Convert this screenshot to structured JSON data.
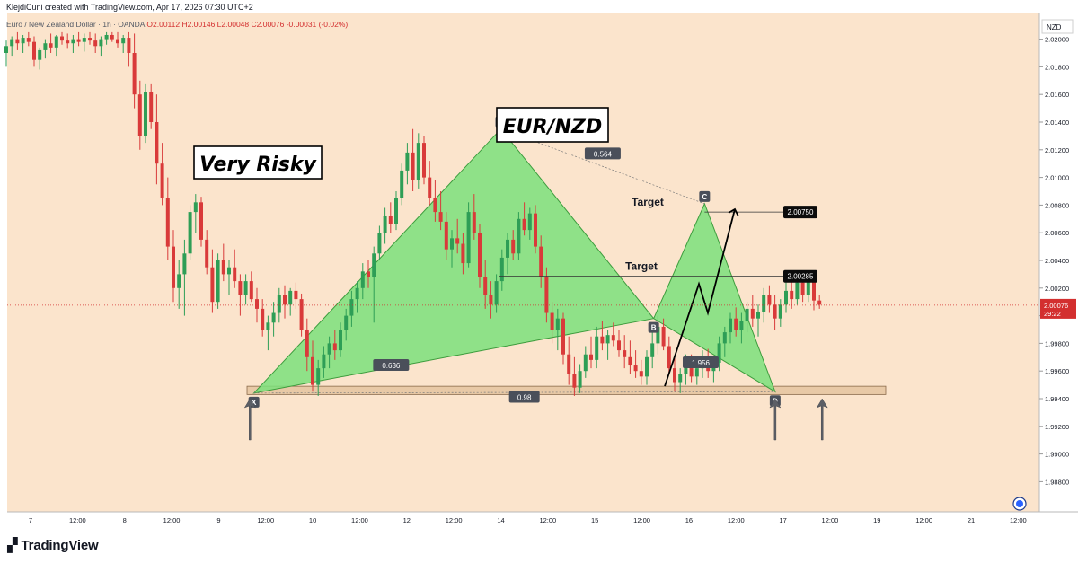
{
  "header": {
    "credit": "KlejdiCuni created with TradingView.com, Apr 17, 2026 07:30 UTC+2",
    "symbol": "Euro / New Zealand Dollar · 1h · OANDA",
    "ohlc": "O2.00112 H2.00146 L2.00048 C2.00076 -0.00031 (-0.02%)"
  },
  "footer": {
    "brand": "TradingView",
    "logo_icon": "tradingview-logo-icon"
  },
  "colors": {
    "background": "#fbe4cc",
    "up": "#2e9e56",
    "down": "#d93a3a",
    "pattern_fill": "#7be07b",
    "zone_fill": "#e8c9a6",
    "last_price": "#d32f2f"
  },
  "chart_data": {
    "type": "candlestick",
    "title": "EUR/NZD",
    "annotations": {
      "risk_label": "Very Risky",
      "pair_label": "EUR/NZD",
      "pattern_points": [
        {
          "label": "X",
          "time": "Apr 9 09:00",
          "price": 1.9944
        },
        {
          "label": "A",
          "time": "Apr 12 00:00",
          "price": 2.0135
        },
        {
          "label": "B",
          "time": "Apr 13 15:00",
          "price": 1.9998
        },
        {
          "label": "C",
          "time": "Apr 14 04:00",
          "price": 2.0081
        },
        {
          "label": "D",
          "time": "Apr 14 22:00",
          "price": 1.9945
        }
      ],
      "ratios": [
        {
          "label": "0.564",
          "time": "Apr 13 02:00",
          "price": 2.0117
        },
        {
          "label": "0.636",
          "time": "Apr 10 20:00",
          "price": 1.9964
        },
        {
          "label": "1.956",
          "time": "Apr 14 03:00",
          "price": 1.9966
        },
        {
          "label": "0.98",
          "time": "Apr 12 06:00",
          "price": 1.9941
        }
      ],
      "targets": [
        {
          "label": "Target",
          "price": 2.0075,
          "badge": "2.00750"
        },
        {
          "label": "Target",
          "price": 2.00285,
          "badge": "2.00285"
        }
      ],
      "support_zone": {
        "from": 1.9943,
        "to": 1.9949
      },
      "arrows_up": [
        "Apr 9 08:00",
        "Apr 14 22:00",
        "Apr 15 10:00"
      ]
    },
    "price_axis": {
      "currency": "NZD",
      "ticks": [
        "2.02000",
        "2.01800",
        "2.01600",
        "2.01400",
        "2.01200",
        "2.01000",
        "2.00800",
        "2.00600",
        "2.00400",
        "2.00200",
        "2.00000",
        "1.99800",
        "1.99600",
        "1.99400",
        "1.99200",
        "1.99000",
        "1.98800"
      ],
      "last_price": "2.00076",
      "countdown": "29:22",
      "range": [
        1.9868,
        2.0205
      ]
    },
    "time_axis": {
      "ticks": [
        "7",
        "12:00",
        "8",
        "12:00",
        "9",
        "12:00",
        "10",
        "12:00",
        "12",
        "12:00",
        "14",
        "12:00",
        "15",
        "12:00",
        "16",
        "12:00",
        "17",
        "12:00",
        "19",
        "12:00",
        "21",
        "12:00"
      ]
    },
    "candles": [
      {
        "o": 2.019,
        "h": 2.0199,
        "l": 2.018,
        "c": 2.0195
      },
      {
        "o": 2.0195,
        "h": 2.0202,
        "l": 2.0188,
        "c": 2.02
      },
      {
        "o": 2.02,
        "h": 2.0205,
        "l": 2.0192,
        "c": 2.0197
      },
      {
        "o": 2.0197,
        "h": 2.0203,
        "l": 2.019,
        "c": 2.0201
      },
      {
        "o": 2.0201,
        "h": 2.0205,
        "l": 2.0195,
        "c": 2.0198
      },
      {
        "o": 2.0198,
        "h": 2.0202,
        "l": 2.018,
        "c": 2.0185
      },
      {
        "o": 2.0185,
        "h": 2.0194,
        "l": 2.0178,
        "c": 2.0192
      },
      {
        "o": 2.0192,
        "h": 2.02,
        "l": 2.0186,
        "c": 2.0197
      },
      {
        "o": 2.0197,
        "h": 2.0204,
        "l": 2.019,
        "c": 2.0194
      },
      {
        "o": 2.0194,
        "h": 2.0203,
        "l": 2.0188,
        "c": 2.0202
      },
      {
        "o": 2.0202,
        "h": 2.0205,
        "l": 2.0196,
        "c": 2.0199
      },
      {
        "o": 2.0199,
        "h": 2.0204,
        "l": 2.0193,
        "c": 2.0197
      },
      {
        "o": 2.0197,
        "h": 2.0203,
        "l": 2.019,
        "c": 2.02
      },
      {
        "o": 2.02,
        "h": 2.0205,
        "l": 2.0195,
        "c": 2.0198
      },
      {
        "o": 2.0198,
        "h": 2.0204,
        "l": 2.0191,
        "c": 2.0201
      },
      {
        "o": 2.0201,
        "h": 2.0205,
        "l": 2.0196,
        "c": 2.0199
      },
      {
        "o": 2.0199,
        "h": 2.0204,
        "l": 2.019,
        "c": 2.0195
      },
      {
        "o": 2.0195,
        "h": 2.0202,
        "l": 2.0188,
        "c": 2.02
      },
      {
        "o": 2.02,
        "h": 2.0205,
        "l": 2.0196,
        "c": 2.0203
      },
      {
        "o": 2.0203,
        "h": 2.0205,
        "l": 2.0198,
        "c": 2.02
      },
      {
        "o": 2.02,
        "h": 2.0205,
        "l": 2.0194,
        "c": 2.0197
      },
      {
        "o": 2.0197,
        "h": 2.0203,
        "l": 2.019,
        "c": 2.0201
      },
      {
        "o": 2.0201,
        "h": 2.0205,
        "l": 2.018,
        "c": 2.019
      },
      {
        "o": 2.019,
        "h": 2.0204,
        "l": 2.015,
        "c": 2.016
      },
      {
        "o": 2.016,
        "h": 2.017,
        "l": 2.012,
        "c": 2.013
      },
      {
        "o": 2.013,
        "h": 2.0168,
        "l": 2.0125,
        "c": 2.0162
      },
      {
        "o": 2.0162,
        "h": 2.0168,
        "l": 2.0135,
        "c": 2.014
      },
      {
        "o": 2.014,
        "h": 2.016,
        "l": 2.0095,
        "c": 2.011
      },
      {
        "o": 2.011,
        "h": 2.0125,
        "l": 2.008,
        "c": 2.0085
      },
      {
        "o": 2.0085,
        "h": 2.01,
        "l": 2.004,
        "c": 2.005
      },
      {
        "o": 2.005,
        "h": 2.0062,
        "l": 2.001,
        "c": 2.002
      },
      {
        "o": 2.002,
        "h": 2.004,
        "l": 2.0005,
        "c": 2.003
      },
      {
        "o": 2.003,
        "h": 2.0055,
        "l": 2.0,
        "c": 2.0045
      },
      {
        "o": 2.0045,
        "h": 2.008,
        "l": 2.004,
        "c": 2.0075
      },
      {
        "o": 2.0075,
        "h": 2.0088,
        "l": 2.006,
        "c": 2.0082
      },
      {
        "o": 2.0082,
        "h": 2.0086,
        "l": 2.005,
        "c": 2.0055
      },
      {
        "o": 2.0055,
        "h": 2.0062,
        "l": 2.003,
        "c": 2.0035
      },
      {
        "o": 2.0035,
        "h": 2.0048,
        "l": 2.0002,
        "c": 2.001
      },
      {
        "o": 2.001,
        "h": 2.0045,
        "l": 2.0005,
        "c": 2.004
      },
      {
        "o": 2.004,
        "h": 2.0052,
        "l": 2.0025,
        "c": 2.003
      },
      {
        "o": 2.003,
        "h": 2.004,
        "l": 2.0015,
        "c": 2.0035
      },
      {
        "o": 2.0035,
        "h": 2.0048,
        "l": 2.002,
        "c": 2.0025
      },
      {
        "o": 2.0025,
        "h": 2.003,
        "l": 2.0,
        "c": 2.0015
      },
      {
        "o": 2.0015,
        "h": 2.003,
        "l": 2.0008,
        "c": 2.0025
      },
      {
        "o": 2.0025,
        "h": 2.0032,
        "l": 2.001,
        "c": 2.0012
      },
      {
        "o": 2.0012,
        "h": 2.002,
        "l": 1.9995,
        "c": 2.0005
      },
      {
        "o": 2.0005,
        "h": 2.0012,
        "l": 1.9985,
        "c": 1.999
      },
      {
        "o": 1.999,
        "h": 2.0,
        "l": 1.9975,
        "c": 1.9995
      },
      {
        "o": 1.9995,
        "h": 2.001,
        "l": 1.9985,
        "c": 2.0002
      },
      {
        "o": 2.0002,
        "h": 2.002,
        "l": 1.9995,
        "c": 2.0015
      },
      {
        "o": 2.0015,
        "h": 2.0022,
        "l": 1.9998,
        "c": 2.0008
      },
      {
        "o": 2.0008,
        "h": 2.002,
        "l": 2.0,
        "c": 2.0018
      },
      {
        "o": 2.0018,
        "h": 2.0024,
        "l": 2.0005,
        "c": 2.0012
      },
      {
        "o": 2.0012,
        "h": 2.0016,
        "l": 1.9985,
        "c": 1.999
      },
      {
        "o": 1.999,
        "h": 1.9998,
        "l": 1.996,
        "c": 1.997
      },
      {
        "o": 1.997,
        "h": 1.9982,
        "l": 1.9945,
        "c": 1.995
      },
      {
        "o": 1.995,
        "h": 1.9968,
        "l": 1.9942,
        "c": 1.9962
      },
      {
        "o": 1.9962,
        "h": 1.9978,
        "l": 1.9955,
        "c": 1.9972
      },
      {
        "o": 1.9972,
        "h": 1.9985,
        "l": 1.9962,
        "c": 1.998
      },
      {
        "o": 1.998,
        "h": 1.999,
        "l": 1.9968,
        "c": 1.9975
      },
      {
        "o": 1.9975,
        "h": 1.9995,
        "l": 1.997,
        "c": 1.999
      },
      {
        "o": 1.999,
        "h": 2.0005,
        "l": 1.9982,
        "c": 2.0
      },
      {
        "o": 2.0,
        "h": 2.0018,
        "l": 1.9992,
        "c": 2.0012
      },
      {
        "o": 2.0012,
        "h": 2.0025,
        "l": 2.0002,
        "c": 2.002
      },
      {
        "o": 2.002,
        "h": 2.0038,
        "l": 2.0012,
        "c": 2.0032
      },
      {
        "o": 2.0032,
        "h": 2.004,
        "l": 2.002,
        "c": 2.0028
      },
      {
        "o": 2.0028,
        "h": 2.005,
        "l": 1.9995,
        "c": 2.0045
      },
      {
        "o": 2.0045,
        "h": 2.0065,
        "l": 2.004,
        "c": 2.006
      },
      {
        "o": 2.006,
        "h": 2.0078,
        "l": 2.0052,
        "c": 2.0072
      },
      {
        "o": 2.0072,
        "h": 2.0082,
        "l": 2.006,
        "c": 2.0066
      },
      {
        "o": 2.0066,
        "h": 2.009,
        "l": 2.0062,
        "c": 2.0085
      },
      {
        "o": 2.0085,
        "h": 2.011,
        "l": 2.008,
        "c": 2.0105
      },
      {
        "o": 2.0105,
        "h": 2.0125,
        "l": 2.0095,
        "c": 2.0118
      },
      {
        "o": 2.0118,
        "h": 2.0135,
        "l": 2.009,
        "c": 2.0098
      },
      {
        "o": 2.0098,
        "h": 2.0132,
        "l": 2.0092,
        "c": 2.0125
      },
      {
        "o": 2.0125,
        "h": 2.013,
        "l": 2.0095,
        "c": 2.01
      },
      {
        "o": 2.01,
        "h": 2.0112,
        "l": 2.008,
        "c": 2.0085
      },
      {
        "o": 2.0085,
        "h": 2.0098,
        "l": 2.0068,
        "c": 2.0075
      },
      {
        "o": 2.0075,
        "h": 2.009,
        "l": 2.0062,
        "c": 2.0068
      },
      {
        "o": 2.0068,
        "h": 2.0075,
        "l": 2.004,
        "c": 2.0048
      },
      {
        "o": 2.0048,
        "h": 2.0062,
        "l": 2.0035,
        "c": 2.0056
      },
      {
        "o": 2.0056,
        "h": 2.007,
        "l": 2.0045,
        "c": 2.0052
      },
      {
        "o": 2.0052,
        "h": 2.006,
        "l": 2.003,
        "c": 2.0038
      },
      {
        "o": 2.0038,
        "h": 2.0082,
        "l": 2.0035,
        "c": 2.0075
      },
      {
        "o": 2.0075,
        "h": 2.0088,
        "l": 2.0055,
        "c": 2.006
      },
      {
        "o": 2.006,
        "h": 2.0066,
        "l": 2.002,
        "c": 2.0028
      },
      {
        "o": 2.0028,
        "h": 2.004,
        "l": 2.0005,
        "c": 2.0015
      },
      {
        "o": 2.0015,
        "h": 2.0025,
        "l": 1.9998,
        "c": 2.0008
      },
      {
        "o": 2.0008,
        "h": 2.003,
        "l": 2.0002,
        "c": 2.0025
      },
      {
        "o": 2.0025,
        "h": 2.0048,
        "l": 2.0018,
        "c": 2.0042
      },
      {
        "o": 2.0042,
        "h": 2.006,
        "l": 2.003,
        "c": 2.0055
      },
      {
        "o": 2.0055,
        "h": 2.0062,
        "l": 2.004,
        "c": 2.0045
      },
      {
        "o": 2.0045,
        "h": 2.0075,
        "l": 2.004,
        "c": 2.007
      },
      {
        "o": 2.007,
        "h": 2.0082,
        "l": 2.0058,
        "c": 2.0062
      },
      {
        "o": 2.0062,
        "h": 2.0078,
        "l": 2.0055,
        "c": 2.0074
      },
      {
        "o": 2.0074,
        "h": 2.008,
        "l": 2.0045,
        "c": 2.005
      },
      {
        "o": 2.005,
        "h": 2.0058,
        "l": 2.002,
        "c": 2.0028
      },
      {
        "o": 2.0028,
        "h": 2.0035,
        "l": 1.9995,
        "c": 2.0002
      },
      {
        "o": 2.0002,
        "h": 2.001,
        "l": 1.998,
        "c": 1.999
      },
      {
        "o": 1.999,
        "h": 2.0005,
        "l": 1.9975,
        "c": 1.9998
      },
      {
        "o": 1.9998,
        "h": 2.0002,
        "l": 1.9965,
        "c": 1.9972
      },
      {
        "o": 1.9972,
        "h": 1.9985,
        "l": 1.995,
        "c": 1.9958
      },
      {
        "o": 1.9958,
        "h": 1.997,
        "l": 1.9942,
        "c": 1.9948
      },
      {
        "o": 1.9948,
        "h": 1.9965,
        "l": 1.9944,
        "c": 1.996
      },
      {
        "o": 1.996,
        "h": 1.9978,
        "l": 1.9955,
        "c": 1.9972
      },
      {
        "o": 1.9972,
        "h": 1.9985,
        "l": 1.9962,
        "c": 1.9968
      },
      {
        "o": 1.9968,
        "h": 1.9992,
        "l": 1.9962,
        "c": 1.9985
      },
      {
        "o": 1.9985,
        "h": 1.9996,
        "l": 1.9975,
        "c": 1.998
      },
      {
        "o": 1.998,
        "h": 1.999,
        "l": 1.9968,
        "c": 1.9986
      },
      {
        "o": 1.9986,
        "h": 1.9995,
        "l": 1.9978,
        "c": 1.9982
      },
      {
        "o": 1.9982,
        "h": 1.999,
        "l": 1.997,
        "c": 1.9975
      },
      {
        "o": 1.9975,
        "h": 1.9986,
        "l": 1.9962,
        "c": 1.997
      },
      {
        "o": 1.997,
        "h": 1.9982,
        "l": 1.9958,
        "c": 1.9964
      },
      {
        "o": 1.9964,
        "h": 1.9975,
        "l": 1.9955,
        "c": 1.996
      },
      {
        "o": 1.996,
        "h": 1.9968,
        "l": 1.995,
        "c": 1.9956
      },
      {
        "o": 1.9956,
        "h": 1.9975,
        "l": 1.995,
        "c": 1.997
      },
      {
        "o": 1.997,
        "h": 1.9988,
        "l": 1.9962,
        "c": 1.998
      },
      {
        "o": 1.998,
        "h": 2.0,
        "l": 1.9972,
        "c": 1.9992
      },
      {
        "o": 1.9992,
        "h": 1.9998,
        "l": 1.9975,
        "c": 1.9978
      },
      {
        "o": 1.9978,
        "h": 1.9985,
        "l": 1.9958,
        "c": 1.9962
      },
      {
        "o": 1.9962,
        "h": 1.997,
        "l": 1.9945,
        "c": 1.9952
      },
      {
        "o": 1.9952,
        "h": 1.9962,
        "l": 1.9944,
        "c": 1.9958
      },
      {
        "o": 1.9958,
        "h": 1.9972,
        "l": 1.995,
        "c": 1.9966
      },
      {
        "o": 1.9966,
        "h": 1.9972,
        "l": 1.9952,
        "c": 1.9956
      },
      {
        "o": 1.9956,
        "h": 1.9968,
        "l": 1.995,
        "c": 1.9962
      },
      {
        "o": 1.9962,
        "h": 1.9975,
        "l": 1.9955,
        "c": 1.997
      },
      {
        "o": 1.997,
        "h": 1.9976,
        "l": 1.9955,
        "c": 1.996
      },
      {
        "o": 1.996,
        "h": 1.997,
        "l": 1.9952,
        "c": 1.9966
      },
      {
        "o": 1.9966,
        "h": 1.9985,
        "l": 1.996,
        "c": 1.998
      },
      {
        "o": 1.998,
        "h": 1.9992,
        "l": 1.997,
        "c": 1.9988
      },
      {
        "o": 1.9988,
        "h": 2.0002,
        "l": 1.998,
        "c": 1.9998
      },
      {
        "o": 1.9998,
        "h": 2.0006,
        "l": 1.9985,
        "c": 1.999
      },
      {
        "o": 1.999,
        "h": 2.0002,
        "l": 1.998,
        "c": 1.9996
      },
      {
        "o": 1.9996,
        "h": 2.001,
        "l": 1.9988,
        "c": 2.0005
      },
      {
        "o": 2.0005,
        "h": 2.0015,
        "l": 1.9992,
        "c": 1.9998
      },
      {
        "o": 1.9998,
        "h": 2.0008,
        "l": 1.9985,
        "c": 2.0003
      },
      {
        "o": 2.0003,
        "h": 2.002,
        "l": 1.9995,
        "c": 2.0015
      },
      {
        "o": 2.0015,
        "h": 2.0022,
        "l": 2.0002,
        "c": 2.0008
      },
      {
        "o": 2.0008,
        "h": 2.0015,
        "l": 1.999,
        "c": 1.9998
      },
      {
        "o": 1.9998,
        "h": 2.0012,
        "l": 1.9992,
        "c": 2.0008
      },
      {
        "o": 2.0008,
        "h": 2.0024,
        "l": 2.0002,
        "c": 2.0018
      },
      {
        "o": 2.0018,
        "h": 2.0026,
        "l": 2.0005,
        "c": 2.0012
      },
      {
        "o": 2.0012,
        "h": 2.0028,
        "l": 2.0008,
        "c": 2.0024
      },
      {
        "o": 2.0024,
        "h": 2.0029,
        "l": 2.001,
        "c": 2.0015
      },
      {
        "o": 2.0015,
        "h": 2.003,
        "l": 2.001,
        "c": 2.0025
      },
      {
        "o": 2.0025,
        "h": 2.0029,
        "l": 2.0004,
        "c": 2.0011
      },
      {
        "o": 2.0011,
        "h": 2.0015,
        "l": 2.0005,
        "c": 2.0008
      }
    ]
  }
}
